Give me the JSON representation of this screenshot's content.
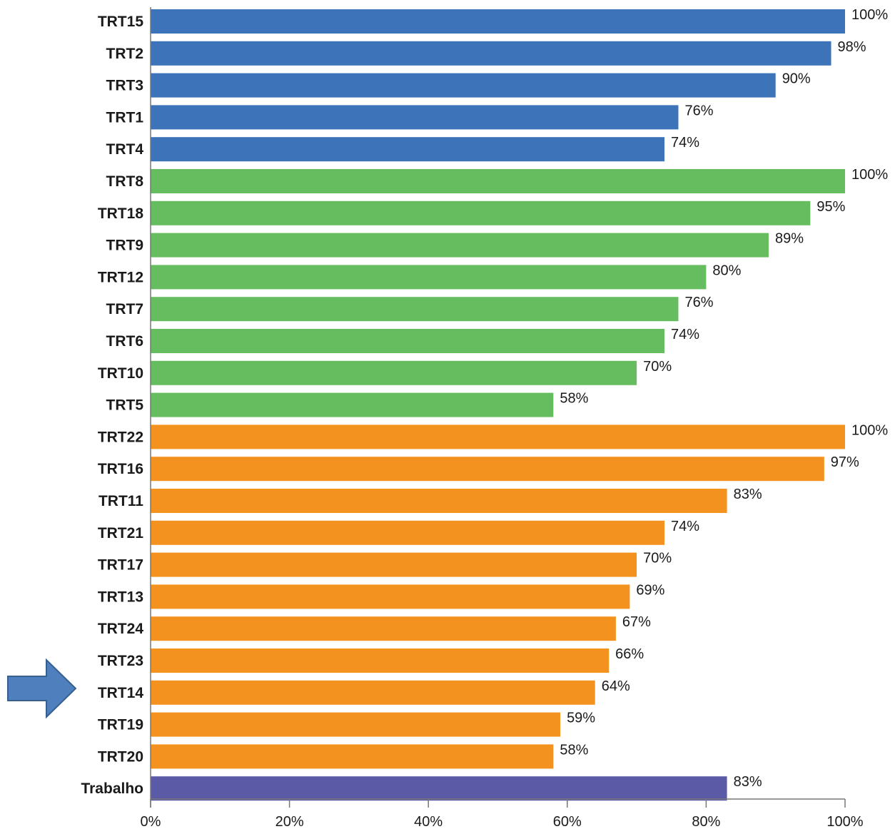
{
  "chart_data": {
    "type": "bar",
    "orientation": "horizontal",
    "title": "",
    "xlabel": "",
    "ylabel": "",
    "xlim": [
      0,
      100
    ],
    "x_ticks": [
      "0%",
      "20%",
      "40%",
      "60%",
      "80%",
      "100%"
    ],
    "grid": false,
    "categories": [
      "TRT15",
      "TRT2",
      "TRT3",
      "TRT1",
      "TRT4",
      "TRT8",
      "TRT18",
      "TRT9",
      "TRT12",
      "TRT7",
      "TRT6",
      "TRT10",
      "TRT5",
      "TRT22",
      "TRT16",
      "TRT11",
      "TRT21",
      "TRT17",
      "TRT13",
      "TRT24",
      "TRT23",
      "TRT14",
      "TRT19",
      "TRT20",
      "Trabalho"
    ],
    "values": [
      100,
      98,
      90,
      76,
      74,
      100,
      95,
      89,
      80,
      76,
      74,
      70,
      58,
      100,
      97,
      83,
      74,
      70,
      69,
      67,
      66,
      64,
      59,
      58,
      83
    ],
    "value_labels": [
      "100%",
      "98%",
      "90%",
      "76%",
      "74%",
      "100%",
      "95%",
      "89%",
      "80%",
      "76%",
      "74%",
      "70%",
      "58%",
      "100%",
      "97%",
      "83%",
      "74%",
      "70%",
      "69%",
      "67%",
      "66%",
      "64%",
      "59%",
      "58%",
      "83%"
    ],
    "groups": [
      "g1",
      "g1",
      "g1",
      "g1",
      "g1",
      "g2",
      "g2",
      "g2",
      "g2",
      "g2",
      "g2",
      "g2",
      "g2",
      "g3",
      "g3",
      "g3",
      "g3",
      "g3",
      "g3",
      "g3",
      "g3",
      "g3",
      "g3",
      "g3",
      "g4"
    ],
    "group_colors": {
      "g1": "#3c73b9",
      "g2": "#66bd5f",
      "g3": "#f4921f",
      "g4": "#5a5aa6"
    },
    "highlight_arrow": {
      "points_to": "TRT14",
      "color": "#4f7fbd",
      "stroke": "#37608f",
      "icon": "right-arrow-icon"
    }
  }
}
